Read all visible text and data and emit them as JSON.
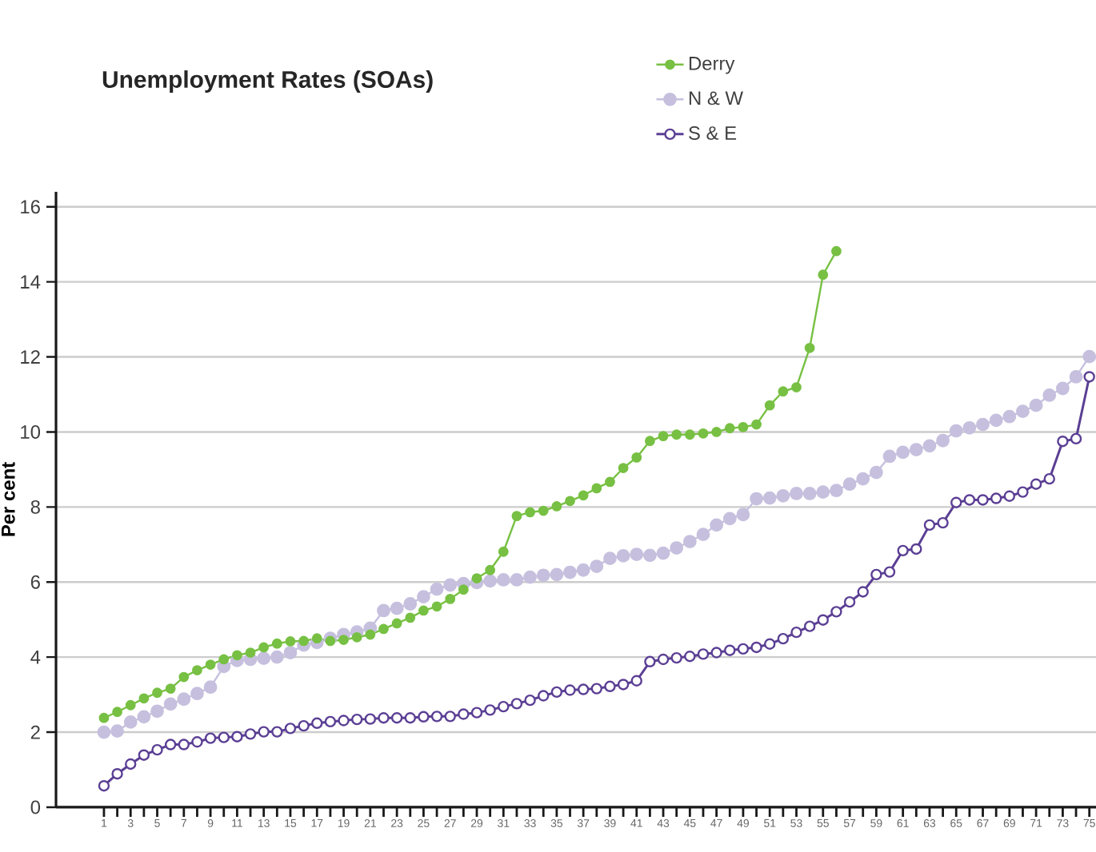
{
  "chart_data": {
    "type": "line",
    "title": "Unemployment Rates (SOAs)",
    "ylabel": "Per cent",
    "categories": [
      "1",
      null,
      "3",
      null,
      "5",
      null,
      "7",
      null,
      "9",
      null,
      "11",
      null,
      "13",
      null,
      "15",
      null,
      "17",
      null,
      "19",
      null,
      "21",
      null,
      "23",
      null,
      "25",
      null,
      "27",
      null,
      "29",
      null,
      "31",
      null,
      "33",
      null,
      "35",
      null,
      "37",
      null,
      "39",
      null,
      "41",
      null,
      "43",
      null,
      "45",
      null,
      "47",
      null,
      "49",
      null,
      "51",
      null,
      "53",
      null,
      "55",
      null,
      "57",
      null,
      "59",
      null,
      "61",
      null,
      "63",
      null,
      "65",
      null,
      "67",
      null,
      "69",
      null,
      "71",
      null,
      "73",
      null,
      "75"
    ],
    "series": [
      {
        "name": "Derry",
        "color": "#77c043",
        "values": [
          2.38,
          2.54,
          2.72,
          2.9,
          3.05,
          3.16,
          3.47,
          3.65,
          3.8,
          3.94,
          4.05,
          4.12,
          4.26,
          4.36,
          4.42,
          4.43,
          4.5,
          4.43,
          4.46,
          4.53,
          4.6,
          4.75,
          4.9,
          5.05,
          5.24,
          5.35,
          5.55,
          5.8,
          6.1,
          6.32,
          6.81,
          7.76,
          7.86,
          7.9,
          8.02,
          8.16,
          8.31,
          8.5,
          8.67,
          9.04,
          9.32,
          9.76,
          9.89,
          9.93,
          9.93,
          9.96,
          10.0,
          10.1,
          10.13,
          10.2,
          10.71,
          11.08,
          11.19,
          12.24,
          14.19,
          14.82,
          null,
          null,
          null,
          null,
          null,
          null,
          null,
          null,
          null,
          null,
          null,
          null,
          null,
          null,
          null,
          null,
          null,
          null,
          null
        ]
      },
      {
        "name": "N & W",
        "color": "#c6c0de",
        "values": [
          2.0,
          2.03,
          2.27,
          2.41,
          2.56,
          2.75,
          2.88,
          3.03,
          3.2,
          3.75,
          3.91,
          3.94,
          3.97,
          4.0,
          4.12,
          4.32,
          4.39,
          4.5,
          4.6,
          4.67,
          4.77,
          5.24,
          5.3,
          5.42,
          5.61,
          5.81,
          5.92,
          5.96,
          5.99,
          6.03,
          6.06,
          6.06,
          6.13,
          6.18,
          6.2,
          6.26,
          6.32,
          6.42,
          6.63,
          6.7,
          6.74,
          6.71,
          6.77,
          6.91,
          7.08,
          7.27,
          7.52,
          7.69,
          7.8,
          8.22,
          8.24,
          8.3,
          8.36,
          8.36,
          8.4,
          8.44,
          8.61,
          8.75,
          8.92,
          9.35,
          9.46,
          9.53,
          9.63,
          9.77,
          10.03,
          10.11,
          10.2,
          10.31,
          10.41,
          10.55,
          10.71,
          10.98,
          11.16,
          11.47,
          12.01
        ]
      },
      {
        "name": "S & E",
        "color": "#5b3f94",
        "values": [
          0.57,
          0.89,
          1.15,
          1.39,
          1.53,
          1.67,
          1.67,
          1.74,
          1.84,
          1.86,
          1.88,
          1.95,
          2.01,
          2.01,
          2.1,
          2.17,
          2.24,
          2.28,
          2.31,
          2.34,
          2.35,
          2.38,
          2.38,
          2.38,
          2.41,
          2.42,
          2.42,
          2.48,
          2.52,
          2.59,
          2.68,
          2.76,
          2.85,
          2.97,
          3.07,
          3.12,
          3.14,
          3.16,
          3.22,
          3.27,
          3.37,
          3.88,
          3.94,
          3.98,
          4.02,
          4.08,
          4.12,
          4.18,
          4.22,
          4.26,
          4.35,
          4.49,
          4.66,
          4.82,
          4.99,
          5.21,
          5.47,
          5.74,
          6.2,
          6.27,
          6.84,
          6.88,
          7.52,
          7.58,
          8.12,
          8.19,
          8.19,
          8.23,
          8.29,
          8.4,
          8.61,
          8.75,
          9.75,
          9.82,
          11.47
        ]
      }
    ],
    "ylim": [
      0,
      16.4
    ],
    "yticks": [
      0,
      2,
      4,
      6,
      8,
      10,
      12,
      14,
      16
    ],
    "grid": "y",
    "legend": "top",
    "marker": "circle",
    "line_style": "solid"
  }
}
